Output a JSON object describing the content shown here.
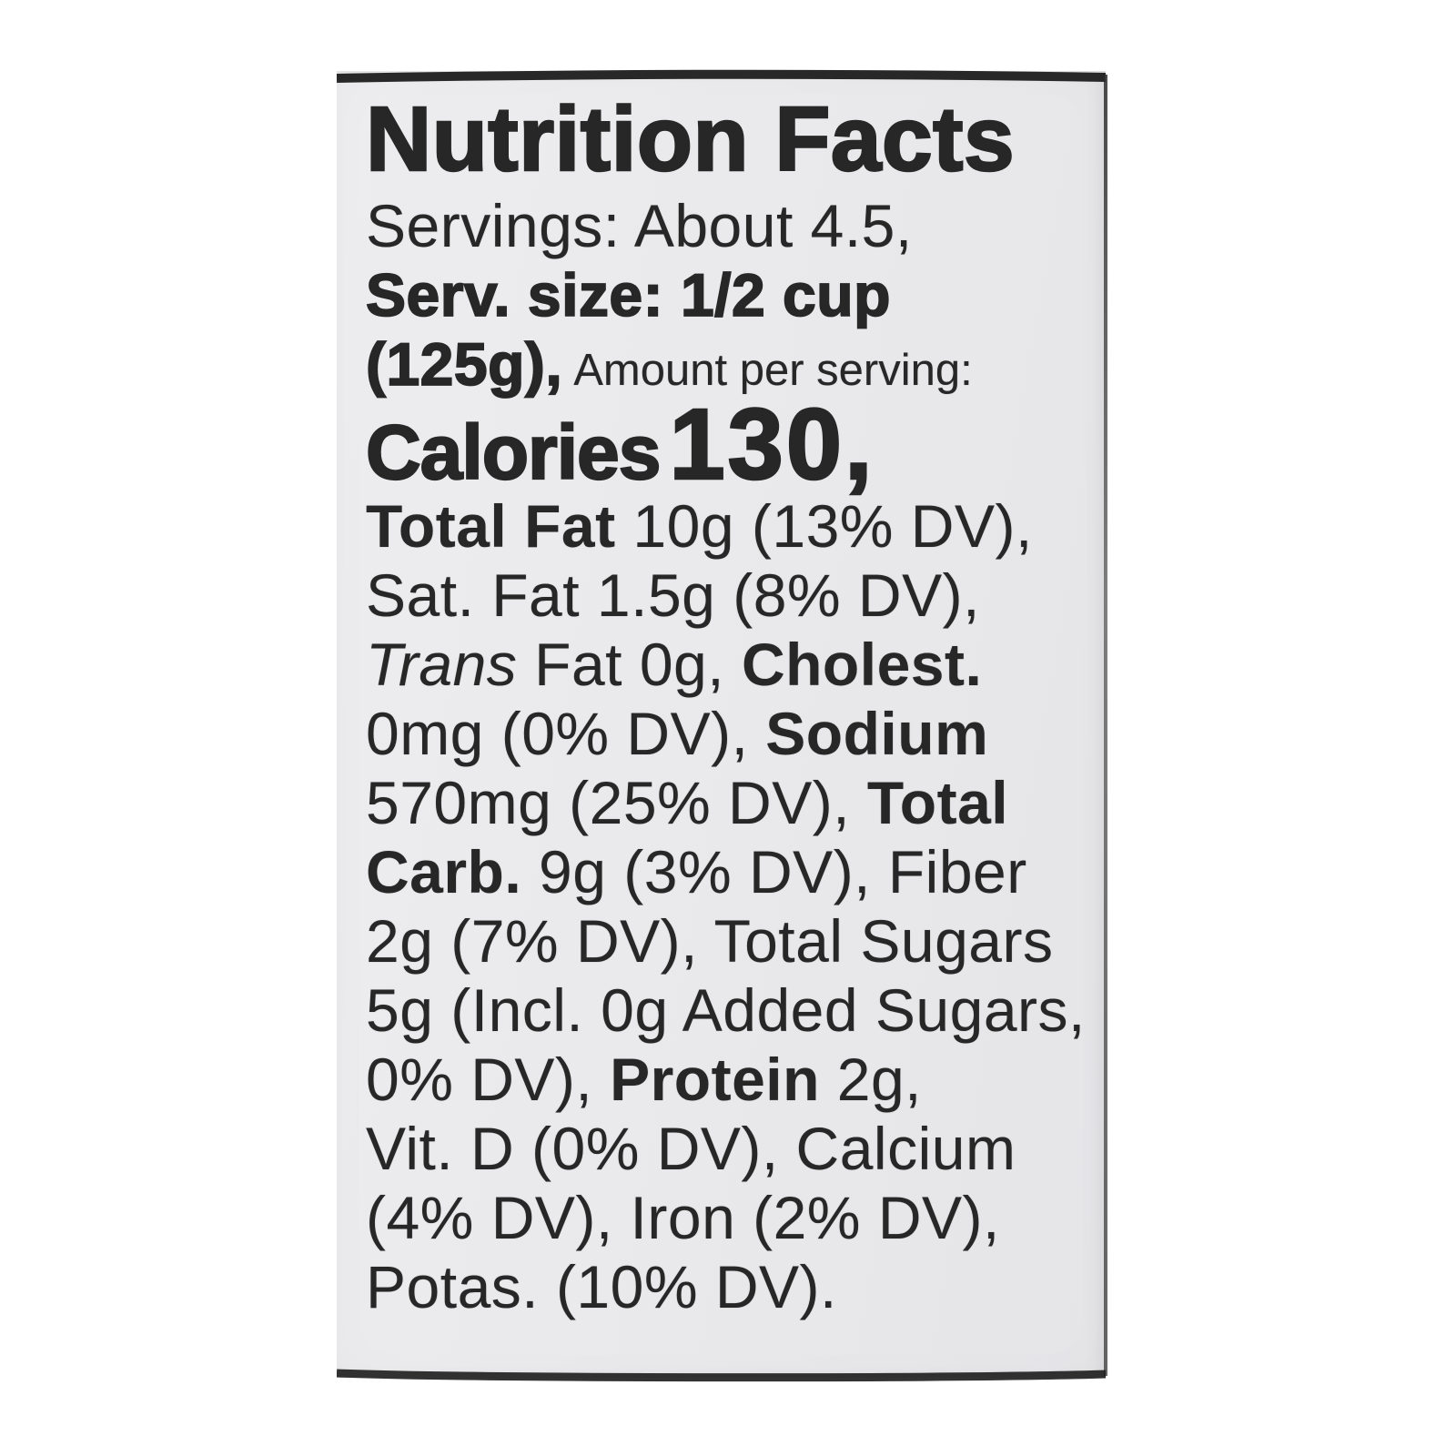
{
  "page": {
    "background": "#ffffff"
  },
  "label": {
    "background": "#e9e9eb",
    "edge_color": "#1d1d1d",
    "text_color": "#272727",
    "lines": [
      {
        "kind": "title",
        "segments": [
          {
            "text": "Nutrition Facts",
            "style": "blk"
          }
        ]
      },
      {
        "kind": "body",
        "segments": [
          {
            "text": "Servings: About 4.5,",
            "style": "r"
          }
        ]
      },
      {
        "kind": "body",
        "segments": [
          {
            "text": "Serv. size: 1/2 cup",
            "style": "blk"
          }
        ]
      },
      {
        "kind": "body",
        "segments": [
          {
            "text": "(125g),",
            "style": "blk"
          },
          {
            "text": "Amount per serving:",
            "style": "sm"
          }
        ]
      },
      {
        "kind": "calories",
        "segments": [
          {
            "text": "Calories",
            "style": "cal"
          },
          {
            "text": "130,",
            "style": "num"
          }
        ]
      },
      {
        "kind": "body",
        "segments": [
          {
            "text": "Total Fat",
            "style": "b"
          },
          {
            "text": " 10g (13% DV),",
            "style": "r"
          }
        ]
      },
      {
        "kind": "body",
        "segments": [
          {
            "text": "Sat. Fat 1.5g (8% DV),",
            "style": "r"
          }
        ]
      },
      {
        "kind": "body",
        "segments": [
          {
            "text": "Trans",
            "style": "i"
          },
          {
            "text": " Fat 0g, ",
            "style": "r"
          },
          {
            "text": "Cholest.",
            "style": "b"
          }
        ]
      },
      {
        "kind": "body",
        "segments": [
          {
            "text": "0mg (0% DV), ",
            "style": "r"
          },
          {
            "text": "Sodium",
            "style": "b"
          }
        ]
      },
      {
        "kind": "body",
        "segments": [
          {
            "text": "570mg (25% DV), ",
            "style": "r"
          },
          {
            "text": "Total",
            "style": "b"
          }
        ]
      },
      {
        "kind": "body",
        "segments": [
          {
            "text": "Carb.",
            "style": "b"
          },
          {
            "text": " 9g (3% DV), Fiber",
            "style": "r"
          }
        ]
      },
      {
        "kind": "body",
        "segments": [
          {
            "text": "2g (7% DV), Total Sugars",
            "style": "r"
          }
        ]
      },
      {
        "kind": "body",
        "segments": [
          {
            "text": "5g (Incl. 0g Added Sugars,",
            "style": "r"
          }
        ]
      },
      {
        "kind": "body",
        "segments": [
          {
            "text": "0% DV), ",
            "style": "r"
          },
          {
            "text": "Protein",
            "style": "b"
          },
          {
            "text": " 2g,",
            "style": "r"
          }
        ]
      },
      {
        "kind": "body",
        "segments": [
          {
            "text": "Vit. D (0% DV), Calcium",
            "style": "r"
          }
        ]
      },
      {
        "kind": "body",
        "segments": [
          {
            "text": "(4% DV), Iron (2% DV),",
            "style": "r"
          }
        ]
      },
      {
        "kind": "body",
        "segments": [
          {
            "text": "Potas. (10% DV).",
            "style": "r"
          }
        ]
      }
    ]
  }
}
